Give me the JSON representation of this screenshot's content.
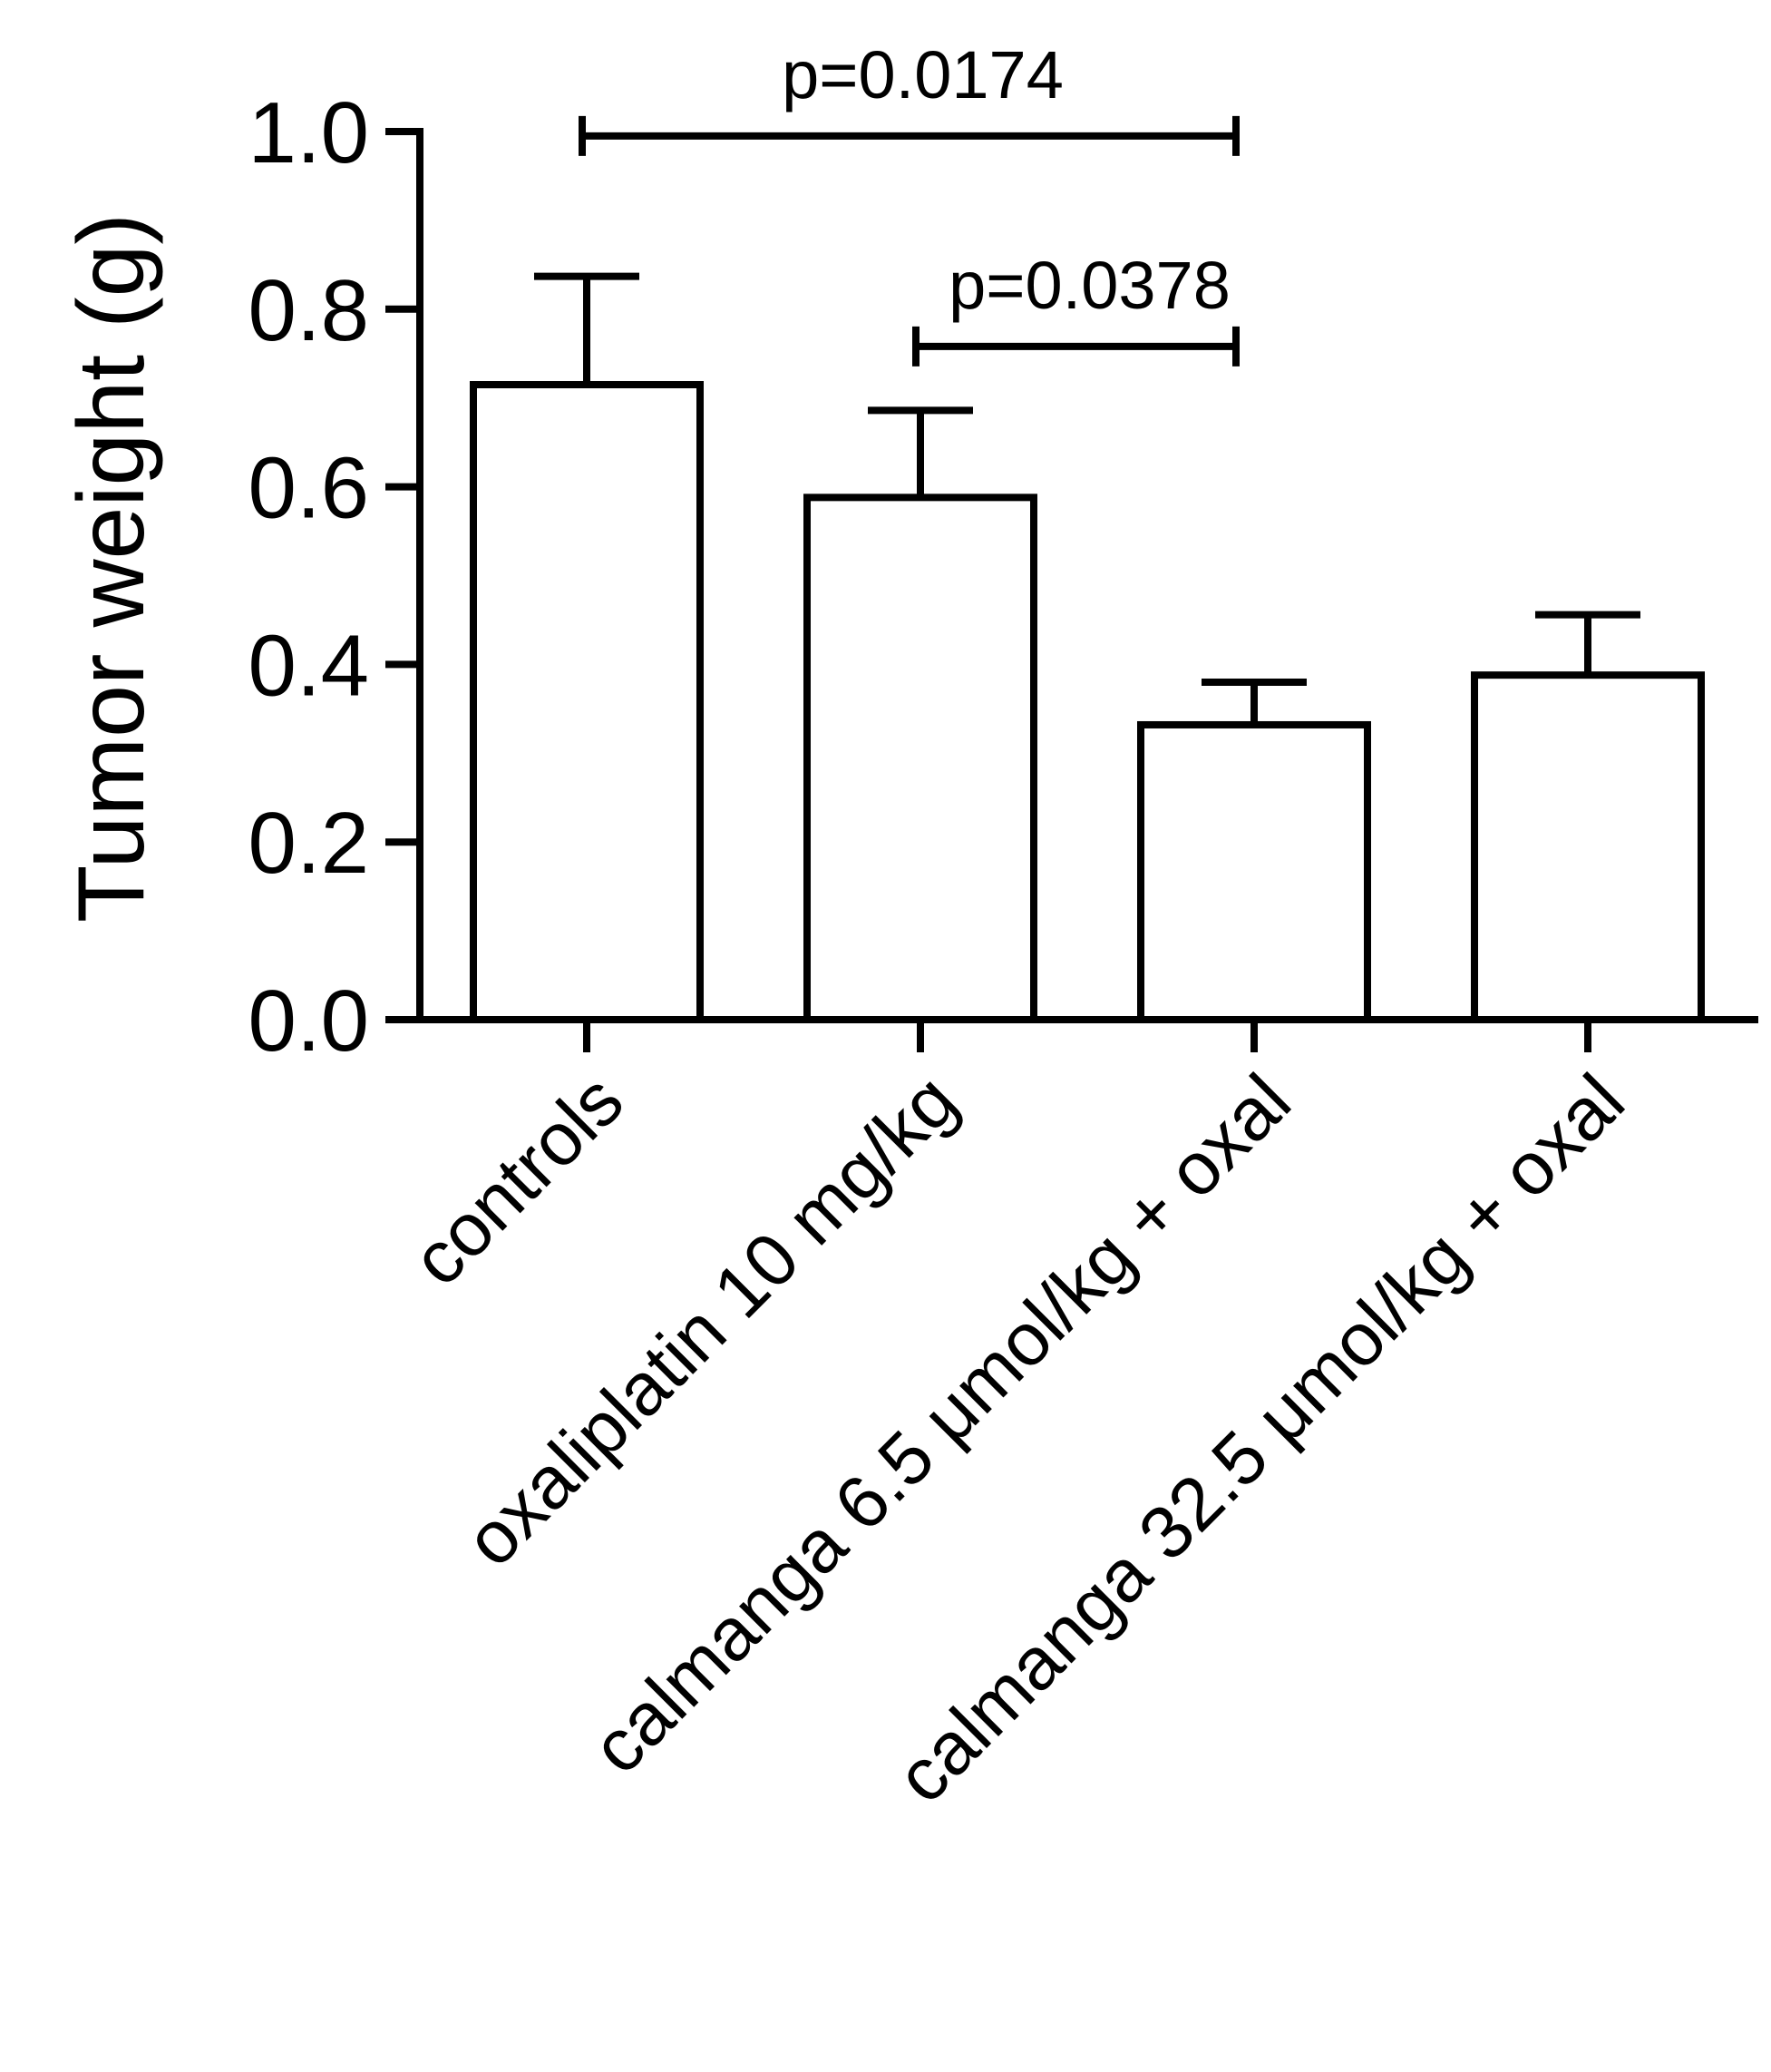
{
  "chart_data": {
    "type": "bar",
    "title": "",
    "xlabel": "",
    "ylabel": "Tumor weight (g)",
    "ylim": [
      0,
      1.0
    ],
    "yticks": [
      "0.0",
      "0.2",
      "0.4",
      "0.6",
      "0.8",
      "1.0"
    ],
    "grid": false,
    "categories": [
      "controls",
      "oxaliplatin 10 mg/kg",
      "calmanga 6.5 μmol/kg + oxal",
      "calmanga 32.5 μmol/kg + oxal"
    ],
    "series": [
      {
        "values": [
          0.715,
          0.588,
          0.332,
          0.388
        ],
        "error": [
          0.122,
          0.098,
          0.048,
          0.068
        ]
      }
    ],
    "annotations": [
      {
        "text": "p=0.0174",
        "from": 0,
        "to": 2,
        "y": 0.995
      },
      {
        "text": "p=0.0378",
        "from": 1,
        "to": 2,
        "y": 0.758
      }
    ],
    "colors": {
      "bar_fill": "#ffffff",
      "stroke": "#000000"
    }
  }
}
